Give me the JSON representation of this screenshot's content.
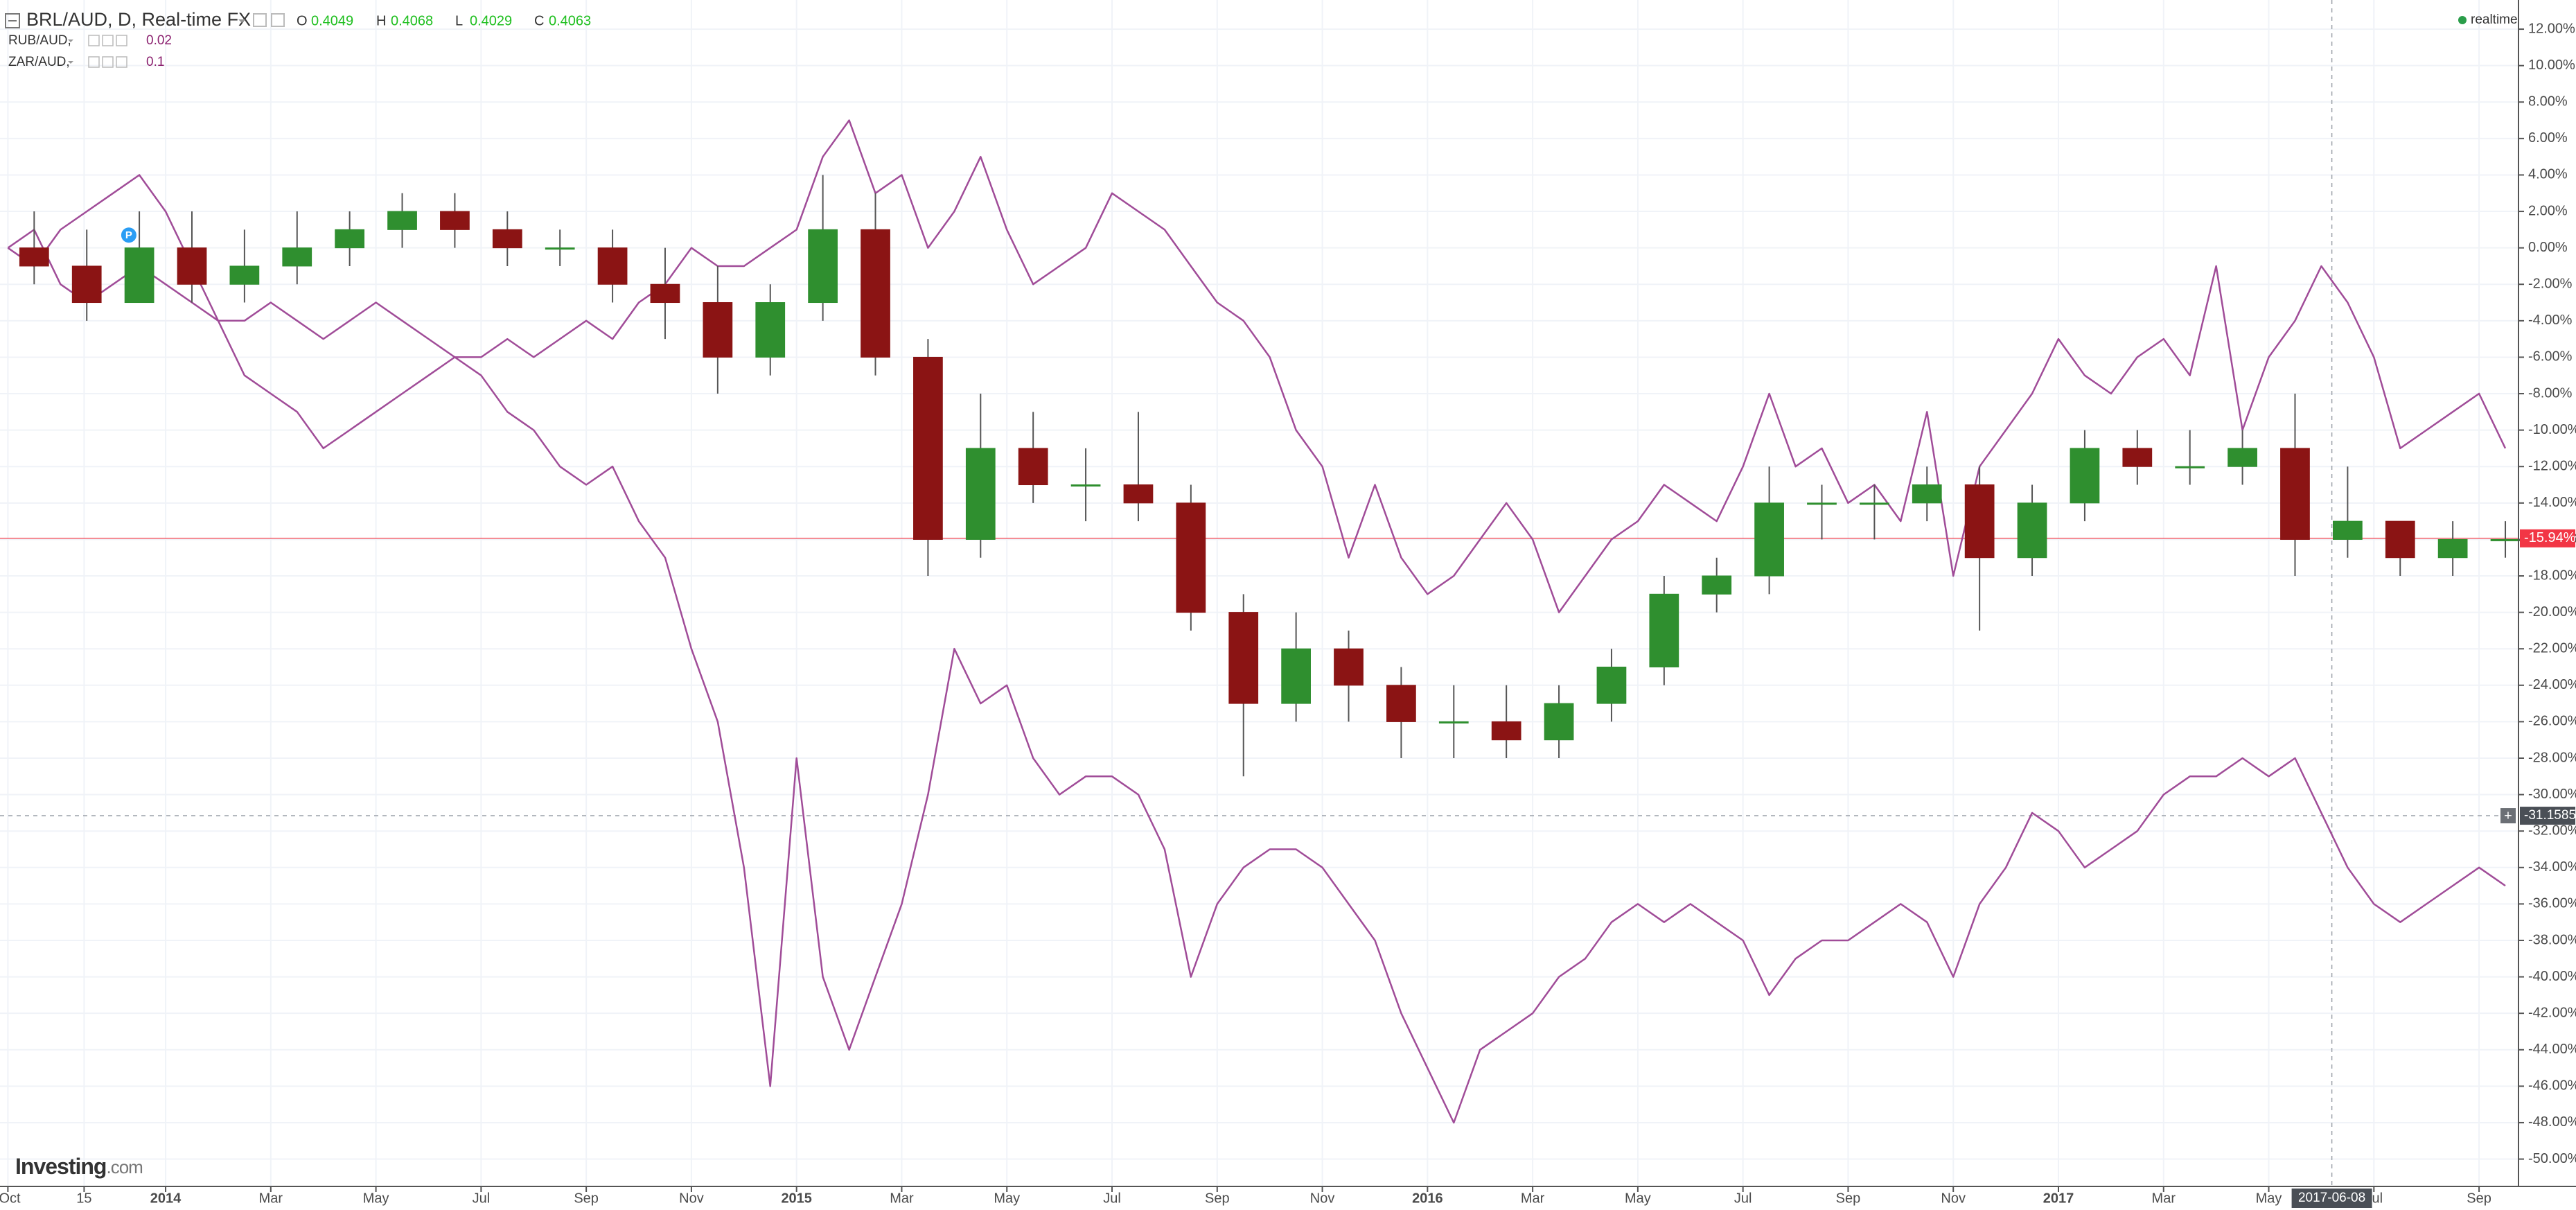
{
  "chart_data": {
    "type": "candlestick",
    "title": "BRL/AUD, D, Real-time FX",
    "ohlc": [
      {
        "label": "O",
        "value": 0.4049
      },
      {
        "label": "H",
        "value": 0.4068
      },
      {
        "label": "L",
        "value": 0.4029
      },
      {
        "label": "C",
        "value": 0.4063
      }
    ],
    "status": "realtime",
    "logo": {
      "name": "Investing",
      "suffix": ".com"
    },
    "up_color": "#2f8f2f",
    "down_color": "#8b1414",
    "open": [
      0,
      -1,
      -3,
      0,
      -2,
      -1,
      0,
      1,
      2,
      1,
      0,
      0,
      -2,
      -3,
      -6,
      -3,
      1,
      -6,
      -16,
      -11,
      -13,
      -13,
      -14,
      -20,
      -25,
      -22,
      -24,
      -26,
      -26,
      -27,
      -25,
      -23,
      -19,
      -18,
      -14,
      -14,
      -14,
      -13,
      -17,
      -14,
      -11,
      -12,
      -12,
      -11,
      -16,
      -15,
      -17,
      -16
    ],
    "high": [
      2,
      1,
      2,
      2,
      1,
      2,
      2,
      3,
      3,
      2,
      1,
      1,
      0,
      -1,
      -2,
      4,
      3,
      -5,
      -8,
      -9,
      -11,
      -9,
      -13,
      -19,
      -20,
      -21,
      -23,
      -24,
      -24,
      -24,
      -22,
      -18,
      -17,
      -12,
      -13,
      -13,
      -12,
      -12,
      -13,
      -10,
      -10,
      -10,
      -10,
      -8,
      -12,
      -15,
      -15,
      -15
    ],
    "low": [
      -2,
      -4,
      -3,
      -3,
      -3,
      -2,
      -1,
      0,
      0,
      -1,
      -1,
      -3,
      -5,
      -8,
      -7,
      -4,
      -7,
      -18,
      -17,
      -14,
      -15,
      -15,
      -21,
      -29,
      -26,
      -26,
      -28,
      -28,
      -28,
      -28,
      -26,
      -24,
      -20,
      -19,
      -16,
      -16,
      -15,
      -21,
      -18,
      -15,
      -13,
      -13,
      -13,
      -18,
      -17,
      -18,
      -18,
      -17
    ],
    "close": [
      -1,
      -3,
      0,
      -2,
      -1,
      0,
      1,
      2,
      1,
      0,
      0,
      -2,
      -3,
      -6,
      -3,
      1,
      -6,
      -16,
      -11,
      -13,
      -13,
      -14,
      -20,
      -25,
      -22,
      -24,
      -26,
      -26,
      -27,
      -25,
      -23,
      -19,
      -18,
      -14,
      -14,
      -14,
      -13,
      -17,
      -14,
      -11,
      -12,
      -12,
      -11,
      -16,
      -15,
      -17,
      -16,
      -16
    ],
    "series": [
      {
        "name": "RUB/AUD,",
        "legend_value": 0.02,
        "color": "#a04c98",
        "values": [
          0,
          1,
          -2,
          -3,
          -2,
          -1,
          -2,
          -3,
          -4,
          -4,
          -3,
          -4,
          -5,
          -4,
          -3,
          -4,
          -5,
          -6,
          -7,
          -9,
          -10,
          -12,
          -13,
          -12,
          -15,
          -17,
          -22,
          -26,
          -34,
          -46,
          -28,
          -40,
          -44,
          -40,
          -36,
          -30,
          -22,
          -25,
          -24,
          -28,
          -30,
          -29,
          -29,
          -30,
          -33,
          -40,
          -36,
          -34,
          -33,
          -33,
          -34,
          -36,
          -38,
          -42,
          -45,
          -48,
          -44,
          -43,
          -42,
          -40,
          -39,
          -37,
          -36,
          -37,
          -36,
          -37,
          -38,
          -41,
          -39,
          -38,
          -38,
          -37,
          -36,
          -37,
          -40,
          -36,
          -34,
          -31,
          -32,
          -34,
          -33,
          -32,
          -30,
          -29,
          -29,
          -28,
          -29,
          -28,
          -31,
          -34,
          -36,
          -37,
          -36,
          -35,
          -34,
          -35
        ]
      },
      {
        "name": "ZAR/AUD,",
        "legend_value": 0.1,
        "color": "#a04c98",
        "values": [
          0,
          -1,
          1,
          2,
          3,
          4,
          2,
          -1,
          -4,
          -7,
          -8,
          -9,
          -11,
          -10,
          -9,
          -8,
          -7,
          -6,
          -6,
          -5,
          -6,
          -5,
          -4,
          -5,
          -3,
          -2,
          0,
          -1,
          -1,
          0,
          1,
          5,
          7,
          3,
          4,
          0,
          2,
          5,
          1,
          -2,
          -1,
          0,
          3,
          2,
          1,
          -1,
          -3,
          -4,
          -6,
          -10,
          -12,
          -17,
          -13,
          -17,
          -19,
          -18,
          -16,
          -14,
          -16,
          -20,
          -18,
          -16,
          -15,
          -13,
          -14,
          -15,
          -12,
          -8,
          -12,
          -11,
          -14,
          -13,
          -15,
          -9,
          -18,
          -12,
          -10,
          -8,
          -5,
          -7,
          -8,
          -6,
          -5,
          -7,
          -1,
          -10,
          -6,
          -4,
          -1,
          -3,
          -6,
          -11,
          -10,
          -9,
          -8,
          -11
        ]
      }
    ],
    "current_value": {
      "value": -15.94,
      "label": "-15.94%",
      "color": "#f23645"
    },
    "crosshair_y": {
      "value": -31.1585,
      "label": "-31.1585"
    },
    "crosshair_x": {
      "value": 44.2,
      "label": "2017-06-08"
    },
    "event": {
      "label": "P",
      "x": 2.3,
      "y": 0.7
    },
    "xlim": [
      -0.15,
      47.75
    ],
    "xticks": [
      {
        "value": 0,
        "label": "Oct"
      },
      {
        "value": 1.45,
        "label": "15"
      },
      {
        "value": 3,
        "label": "2014"
      },
      {
        "value": 5,
        "label": "Mar"
      },
      {
        "value": 7,
        "label": "May"
      },
      {
        "value": 9,
        "label": "Jul"
      },
      {
        "value": 11,
        "label": "Sep"
      },
      {
        "value": 13,
        "label": "Nov"
      },
      {
        "value": 15,
        "label": "2015"
      },
      {
        "value": 17,
        "label": "Mar"
      },
      {
        "value": 19,
        "label": "May"
      },
      {
        "value": 21,
        "label": "Jul"
      },
      {
        "value": 23,
        "label": "Sep"
      },
      {
        "value": 25,
        "label": "Nov"
      },
      {
        "value": 27,
        "label": "2016"
      },
      {
        "value": 29,
        "label": "Mar"
      },
      {
        "value": 31,
        "label": "May"
      },
      {
        "value": 33,
        "label": "Jul"
      },
      {
        "value": 35,
        "label": "Sep"
      },
      {
        "value": 37,
        "label": "Nov"
      },
      {
        "value": 39,
        "label": "2017"
      },
      {
        "value": 41,
        "label": "Mar"
      },
      {
        "value": 43,
        "label": "May"
      },
      {
        "value": 45,
        "label": "Jul"
      },
      {
        "value": 47,
        "label": "Sep"
      }
    ],
    "ylim": [
      -51.5,
      13.6
    ],
    "yticks": [
      {
        "value": 12,
        "label": "12.00%"
      },
      {
        "value": 10,
        "label": "10.00%"
      },
      {
        "value": 8,
        "label": "8.00%"
      },
      {
        "value": 6,
        "label": "6.00%"
      },
      {
        "value": 4,
        "label": "4.00%"
      },
      {
        "value": 2,
        "label": "2.00%"
      },
      {
        "value": 0,
        "label": "0.00%"
      },
      {
        "value": -2,
        "label": "-2.00%"
      },
      {
        "value": -4,
        "label": "-4.00%"
      },
      {
        "value": -6,
        "label": "-6.00%"
      },
      {
        "value": -8,
        "label": "-8.00%"
      },
      {
        "value": -10,
        "label": "-10.00%"
      },
      {
        "value": -12,
        "label": "-12.00%"
      },
      {
        "value": -14,
        "label": "-14.00%"
      },
      {
        "value": -16,
        "label": "-16.00%"
      },
      {
        "value": -18,
        "label": "-18.00%"
      },
      {
        "value": -20,
        "label": "-20.00%"
      },
      {
        "value": -22,
        "label": "-22.00%"
      },
      {
        "value": -24,
        "label": "-24.00%"
      },
      {
        "value": -26,
        "label": "-26.00%"
      },
      {
        "value": -28,
        "label": "-28.00%"
      },
      {
        "value": -30,
        "label": "-30.00%"
      },
      {
        "value": -32,
        "label": "-32.00%"
      },
      {
        "value": -34,
        "label": "-34.00%"
      },
      {
        "value": -36,
        "label": "-36.00%"
      },
      {
        "value": -38,
        "label": "-38.00%"
      },
      {
        "value": -40,
        "label": "-40.00%"
      },
      {
        "value": -42,
        "label": "-42.00%"
      },
      {
        "value": -44,
        "label": "-44.00%"
      },
      {
        "value": -46,
        "label": "-46.00%"
      },
      {
        "value": -48,
        "label": "-48.00%"
      },
      {
        "value": -50,
        "label": "-50.00%"
      }
    ],
    "grid": true
  }
}
